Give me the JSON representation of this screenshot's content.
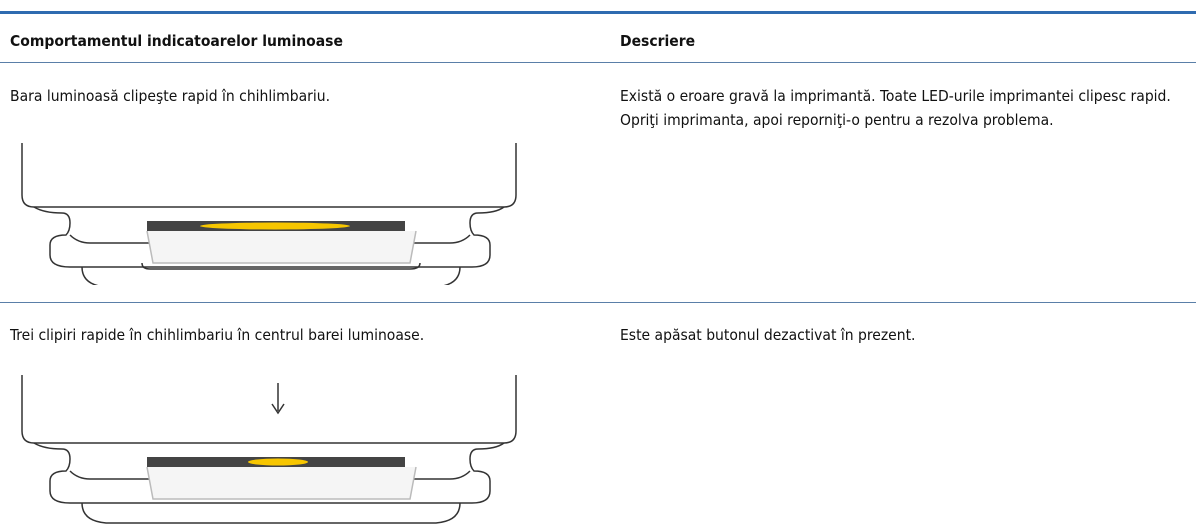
{
  "table": {
    "header": [
      "Comportamentul indicatoarelor luminoase",
      "Descriere"
    ],
    "rows": [
      [
        "Bara luminoasă clipeşte rapid în chihlimbariu.",
        "Există o eroare gravă la imprimantă. Toate LED-urile imprimantei clipesc rapid. Opriţi imprimanta, apoi reporniţi-o pentru a rezolva problema."
      ],
      [
        "Trei clipiri rapide în chihlimbariu în centrul barei luminoase.",
        "Este apăsat butonul dezactivat în prezent."
      ]
    ]
  }
}
